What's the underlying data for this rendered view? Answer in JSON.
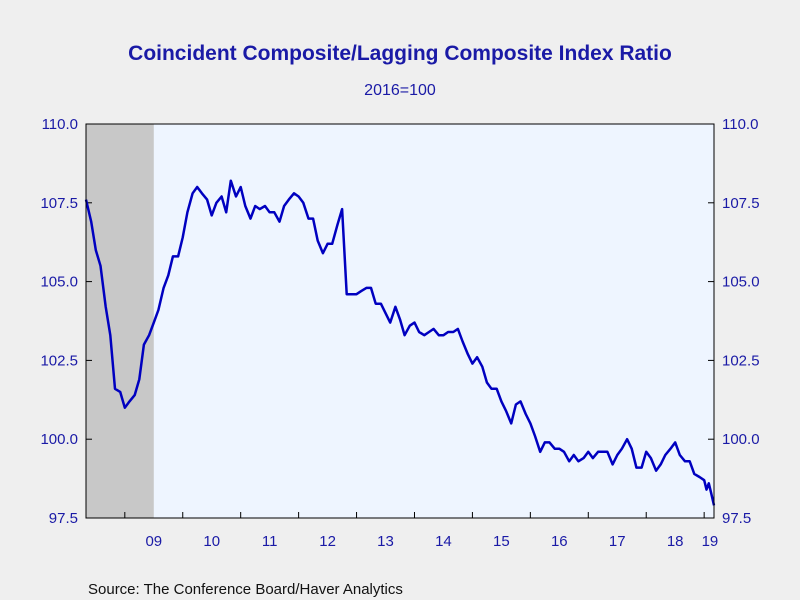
{
  "chart_data": {
    "type": "line",
    "title": "Coincident Composite/Lagging Composite Index Ratio",
    "subtitle": "2016=100",
    "source": "Source:  The Conference Board/Haver Analytics",
    "ylim": [
      97.5,
      110.0
    ],
    "yticks": [
      "97.5",
      "100.0",
      "102.5",
      "105.0",
      "107.5",
      "110.0"
    ],
    "xlim": [
      2008.33,
      2019.17
    ],
    "xticks": [
      {
        "label": "09",
        "at": 2009.5
      },
      {
        "label": "10",
        "at": 2010.5
      },
      {
        "label": "11",
        "at": 2011.5
      },
      {
        "label": "12",
        "at": 2012.5
      },
      {
        "label": "13",
        "at": 2013.5
      },
      {
        "label": "14",
        "at": 2014.5
      },
      {
        "label": "15",
        "at": 2015.5
      },
      {
        "label": "16",
        "at": 2016.5
      },
      {
        "label": "17",
        "at": 2017.5
      },
      {
        "label": "18",
        "at": 2018.5
      },
      {
        "label": "19",
        "at": 2019.1
      }
    ],
    "recession": {
      "start": 2008.33,
      "end": 2009.5
    },
    "grid": false,
    "colors": {
      "line": "#0000c0",
      "plot_bg": "#eef5ff",
      "recession": "#c8c8c8",
      "axis_text": "#1a1aa6",
      "title": "#1a1aa6"
    },
    "series": [
      {
        "points": [
          [
            2008.33,
            107.6
          ],
          [
            2008.42,
            106.9
          ],
          [
            2008.5,
            106.0
          ],
          [
            2008.58,
            105.5
          ],
          [
            2008.67,
            104.2
          ],
          [
            2008.75,
            103.3
          ],
          [
            2008.83,
            101.6
          ],
          [
            2008.92,
            101.5
          ],
          [
            2009.0,
            101.0
          ],
          [
            2009.08,
            101.2
          ],
          [
            2009.17,
            101.4
          ],
          [
            2009.25,
            101.9
          ],
          [
            2009.33,
            103.0
          ],
          [
            2009.42,
            103.3
          ],
          [
            2009.5,
            103.7
          ],
          [
            2009.58,
            104.1
          ],
          [
            2009.67,
            104.8
          ],
          [
            2009.75,
            105.2
          ],
          [
            2009.83,
            105.8
          ],
          [
            2009.92,
            105.8
          ],
          [
            2010.0,
            106.4
          ],
          [
            2010.08,
            107.2
          ],
          [
            2010.17,
            107.8
          ],
          [
            2010.25,
            108.0
          ],
          [
            2010.33,
            107.8
          ],
          [
            2010.42,
            107.6
          ],
          [
            2010.5,
            107.1
          ],
          [
            2010.58,
            107.5
          ],
          [
            2010.67,
            107.7
          ],
          [
            2010.75,
            107.2
          ],
          [
            2010.83,
            108.2
          ],
          [
            2010.92,
            107.7
          ],
          [
            2011.0,
            108.0
          ],
          [
            2011.08,
            107.4
          ],
          [
            2011.17,
            107.0
          ],
          [
            2011.25,
            107.4
          ],
          [
            2011.33,
            107.3
          ],
          [
            2011.42,
            107.4
          ],
          [
            2011.5,
            107.2
          ],
          [
            2011.58,
            107.2
          ],
          [
            2011.67,
            106.9
          ],
          [
            2011.75,
            107.4
          ],
          [
            2011.83,
            107.6
          ],
          [
            2011.92,
            107.8
          ],
          [
            2012.0,
            107.7
          ],
          [
            2012.08,
            107.5
          ],
          [
            2012.17,
            107.0
          ],
          [
            2012.25,
            107.0
          ],
          [
            2012.33,
            106.3
          ],
          [
            2012.42,
            105.9
          ],
          [
            2012.5,
            106.2
          ],
          [
            2012.58,
            106.2
          ],
          [
            2012.67,
            106.8
          ],
          [
            2012.75,
            107.3
          ],
          [
            2012.83,
            104.6
          ],
          [
            2012.92,
            104.6
          ],
          [
            2013.0,
            104.6
          ],
          [
            2013.08,
            104.7
          ],
          [
            2013.17,
            104.8
          ],
          [
            2013.25,
            104.8
          ],
          [
            2013.33,
            104.3
          ],
          [
            2013.42,
            104.3
          ],
          [
            2013.5,
            104.0
          ],
          [
            2013.58,
            103.7
          ],
          [
            2013.67,
            104.2
          ],
          [
            2013.75,
            103.8
          ],
          [
            2013.83,
            103.3
          ],
          [
            2013.92,
            103.6
          ],
          [
            2014.0,
            103.7
          ],
          [
            2014.08,
            103.4
          ],
          [
            2014.17,
            103.3
          ],
          [
            2014.25,
            103.4
          ],
          [
            2014.33,
            103.5
          ],
          [
            2014.42,
            103.3
          ],
          [
            2014.5,
            103.3
          ],
          [
            2014.58,
            103.4
          ],
          [
            2014.67,
            103.4
          ],
          [
            2014.75,
            103.5
          ],
          [
            2014.83,
            103.1
          ],
          [
            2014.92,
            102.7
          ],
          [
            2015.0,
            102.4
          ],
          [
            2015.08,
            102.6
          ],
          [
            2015.17,
            102.3
          ],
          [
            2015.25,
            101.8
          ],
          [
            2015.33,
            101.6
          ],
          [
            2015.42,
            101.6
          ],
          [
            2015.5,
            101.2
          ],
          [
            2015.58,
            100.9
          ],
          [
            2015.67,
            100.5
          ],
          [
            2015.75,
            101.1
          ],
          [
            2015.83,
            101.2
          ],
          [
            2015.92,
            100.8
          ],
          [
            2016.0,
            100.5
          ],
          [
            2016.08,
            100.1
          ],
          [
            2016.17,
            99.6
          ],
          [
            2016.25,
            99.9
          ],
          [
            2016.33,
            99.9
          ],
          [
            2016.42,
            99.7
          ],
          [
            2016.5,
            99.7
          ],
          [
            2016.58,
            99.6
          ],
          [
            2016.67,
            99.3
          ],
          [
            2016.75,
            99.5
          ],
          [
            2016.83,
            99.3
          ],
          [
            2016.92,
            99.4
          ],
          [
            2017.0,
            99.6
          ],
          [
            2017.08,
            99.4
          ],
          [
            2017.17,
            99.6
          ],
          [
            2017.25,
            99.6
          ],
          [
            2017.33,
            99.6
          ],
          [
            2017.42,
            99.2
          ],
          [
            2017.5,
            99.5
          ],
          [
            2017.58,
            99.7
          ],
          [
            2017.67,
            100.0
          ],
          [
            2017.75,
            99.7
          ],
          [
            2017.83,
            99.1
          ],
          [
            2017.92,
            99.1
          ],
          [
            2018.0,
            99.6
          ],
          [
            2018.08,
            99.4
          ],
          [
            2018.17,
            99.0
          ],
          [
            2018.25,
            99.2
          ],
          [
            2018.33,
            99.5
          ],
          [
            2018.42,
            99.7
          ],
          [
            2018.5,
            99.9
          ],
          [
            2018.58,
            99.5
          ],
          [
            2018.67,
            99.3
          ],
          [
            2018.75,
            99.3
          ],
          [
            2018.83,
            98.9
          ],
          [
            2018.92,
            98.8
          ],
          [
            2019.0,
            98.7
          ],
          [
            2019.04,
            98.4
          ],
          [
            2019.08,
            98.6
          ],
          [
            2019.12,
            98.3
          ],
          [
            2019.17,
            97.9
          ]
        ]
      }
    ]
  }
}
